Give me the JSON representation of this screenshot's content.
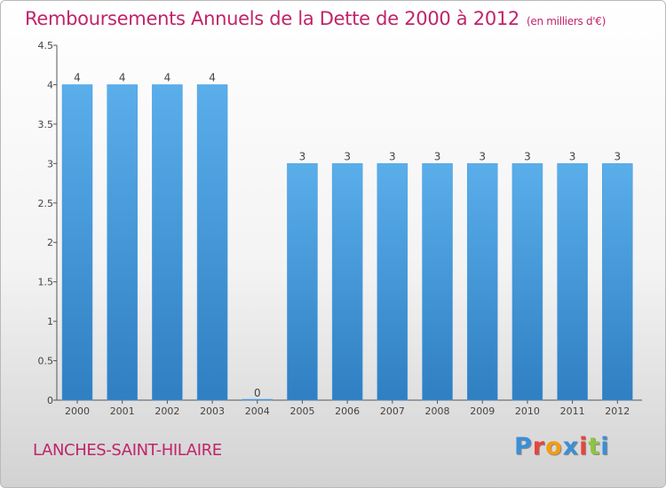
{
  "header": {
    "title": "Remboursements Annuels de la Dette de 2000 à 2012",
    "unit": "(en milliers d'€)"
  },
  "footer": {
    "commune": "LANCHES-SAINT-HILAIRE"
  },
  "logo": {
    "letters": [
      "P",
      "r",
      "o",
      "x",
      "i",
      "t",
      "i"
    ],
    "colors": [
      "#3b8fd6",
      "#e8443a",
      "#f39c12",
      "#3b8fd6",
      "#e8443a",
      "#8dc63f",
      "#3b8fd6"
    ]
  },
  "chart_data": {
    "type": "bar",
    "categories": [
      "2000",
      "2001",
      "2002",
      "2003",
      "2004",
      "2005",
      "2006",
      "2007",
      "2008",
      "2009",
      "2010",
      "2011",
      "2012"
    ],
    "values": [
      4,
      4,
      4,
      4,
      0,
      3,
      3,
      3,
      3,
      3,
      3,
      3,
      3
    ],
    "value_labels": [
      "4",
      "4",
      "4",
      "4",
      "0",
      "3",
      "3",
      "3",
      "3",
      "3",
      "3",
      "3",
      "3"
    ],
    "yticks": [
      0,
      0.5,
      1,
      1.5,
      2,
      2.5,
      3,
      3.5,
      4,
      4.5
    ],
    "ytick_labels": [
      "0",
      "0.5",
      "1",
      "1.5",
      "2",
      "2.5",
      "3",
      "3.5",
      "4",
      "4.5"
    ],
    "ylim": [
      0,
      4.5
    ],
    "grid": false,
    "bar_color": "#4b9be0"
  }
}
